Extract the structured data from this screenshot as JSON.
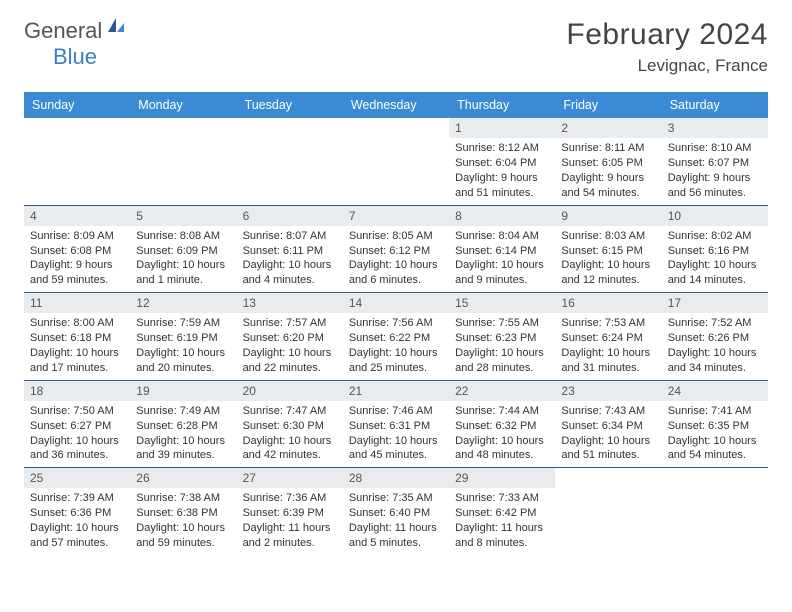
{
  "brand": {
    "part1": "General",
    "part2": "Blue"
  },
  "title": "February 2024",
  "location": "Levignac, France",
  "colors": {
    "header_bg": "#3b8bd4",
    "header_text": "#ffffff",
    "row_divider": "#2d5a8c",
    "daynum_bg": "#e9ecef",
    "daynum_text": "#555555",
    "brand_blue": "#3b7fc4",
    "body_text": "#333333",
    "page_bg": "#ffffff"
  },
  "weekdays": [
    "Sunday",
    "Monday",
    "Tuesday",
    "Wednesday",
    "Thursday",
    "Friday",
    "Saturday"
  ],
  "weeks": [
    [
      null,
      null,
      null,
      null,
      {
        "n": "1",
        "sr": "8:12 AM",
        "ss": "6:04 PM",
        "dl": "9 hours and 51 minutes."
      },
      {
        "n": "2",
        "sr": "8:11 AM",
        "ss": "6:05 PM",
        "dl": "9 hours and 54 minutes."
      },
      {
        "n": "3",
        "sr": "8:10 AM",
        "ss": "6:07 PM",
        "dl": "9 hours and 56 minutes."
      }
    ],
    [
      {
        "n": "4",
        "sr": "8:09 AM",
        "ss": "6:08 PM",
        "dl": "9 hours and 59 minutes."
      },
      {
        "n": "5",
        "sr": "8:08 AM",
        "ss": "6:09 PM",
        "dl": "10 hours and 1 minute."
      },
      {
        "n": "6",
        "sr": "8:07 AM",
        "ss": "6:11 PM",
        "dl": "10 hours and 4 minutes."
      },
      {
        "n": "7",
        "sr": "8:05 AM",
        "ss": "6:12 PM",
        "dl": "10 hours and 6 minutes."
      },
      {
        "n": "8",
        "sr": "8:04 AM",
        "ss": "6:14 PM",
        "dl": "10 hours and 9 minutes."
      },
      {
        "n": "9",
        "sr": "8:03 AM",
        "ss": "6:15 PM",
        "dl": "10 hours and 12 minutes."
      },
      {
        "n": "10",
        "sr": "8:02 AM",
        "ss": "6:16 PM",
        "dl": "10 hours and 14 minutes."
      }
    ],
    [
      {
        "n": "11",
        "sr": "8:00 AM",
        "ss": "6:18 PM",
        "dl": "10 hours and 17 minutes."
      },
      {
        "n": "12",
        "sr": "7:59 AM",
        "ss": "6:19 PM",
        "dl": "10 hours and 20 minutes."
      },
      {
        "n": "13",
        "sr": "7:57 AM",
        "ss": "6:20 PM",
        "dl": "10 hours and 22 minutes."
      },
      {
        "n": "14",
        "sr": "7:56 AM",
        "ss": "6:22 PM",
        "dl": "10 hours and 25 minutes."
      },
      {
        "n": "15",
        "sr": "7:55 AM",
        "ss": "6:23 PM",
        "dl": "10 hours and 28 minutes."
      },
      {
        "n": "16",
        "sr": "7:53 AM",
        "ss": "6:24 PM",
        "dl": "10 hours and 31 minutes."
      },
      {
        "n": "17",
        "sr": "7:52 AM",
        "ss": "6:26 PM",
        "dl": "10 hours and 34 minutes."
      }
    ],
    [
      {
        "n": "18",
        "sr": "7:50 AM",
        "ss": "6:27 PM",
        "dl": "10 hours and 36 minutes."
      },
      {
        "n": "19",
        "sr": "7:49 AM",
        "ss": "6:28 PM",
        "dl": "10 hours and 39 minutes."
      },
      {
        "n": "20",
        "sr": "7:47 AM",
        "ss": "6:30 PM",
        "dl": "10 hours and 42 minutes."
      },
      {
        "n": "21",
        "sr": "7:46 AM",
        "ss": "6:31 PM",
        "dl": "10 hours and 45 minutes."
      },
      {
        "n": "22",
        "sr": "7:44 AM",
        "ss": "6:32 PM",
        "dl": "10 hours and 48 minutes."
      },
      {
        "n": "23",
        "sr": "7:43 AM",
        "ss": "6:34 PM",
        "dl": "10 hours and 51 minutes."
      },
      {
        "n": "24",
        "sr": "7:41 AM",
        "ss": "6:35 PM",
        "dl": "10 hours and 54 minutes."
      }
    ],
    [
      {
        "n": "25",
        "sr": "7:39 AM",
        "ss": "6:36 PM",
        "dl": "10 hours and 57 minutes."
      },
      {
        "n": "26",
        "sr": "7:38 AM",
        "ss": "6:38 PM",
        "dl": "10 hours and 59 minutes."
      },
      {
        "n": "27",
        "sr": "7:36 AM",
        "ss": "6:39 PM",
        "dl": "11 hours and 2 minutes."
      },
      {
        "n": "28",
        "sr": "7:35 AM",
        "ss": "6:40 PM",
        "dl": "11 hours and 5 minutes."
      },
      {
        "n": "29",
        "sr": "7:33 AM",
        "ss": "6:42 PM",
        "dl": "11 hours and 8 minutes."
      },
      null,
      null
    ]
  ],
  "labels": {
    "sunrise": "Sunrise: ",
    "sunset": "Sunset: ",
    "daylight": "Daylight: "
  }
}
